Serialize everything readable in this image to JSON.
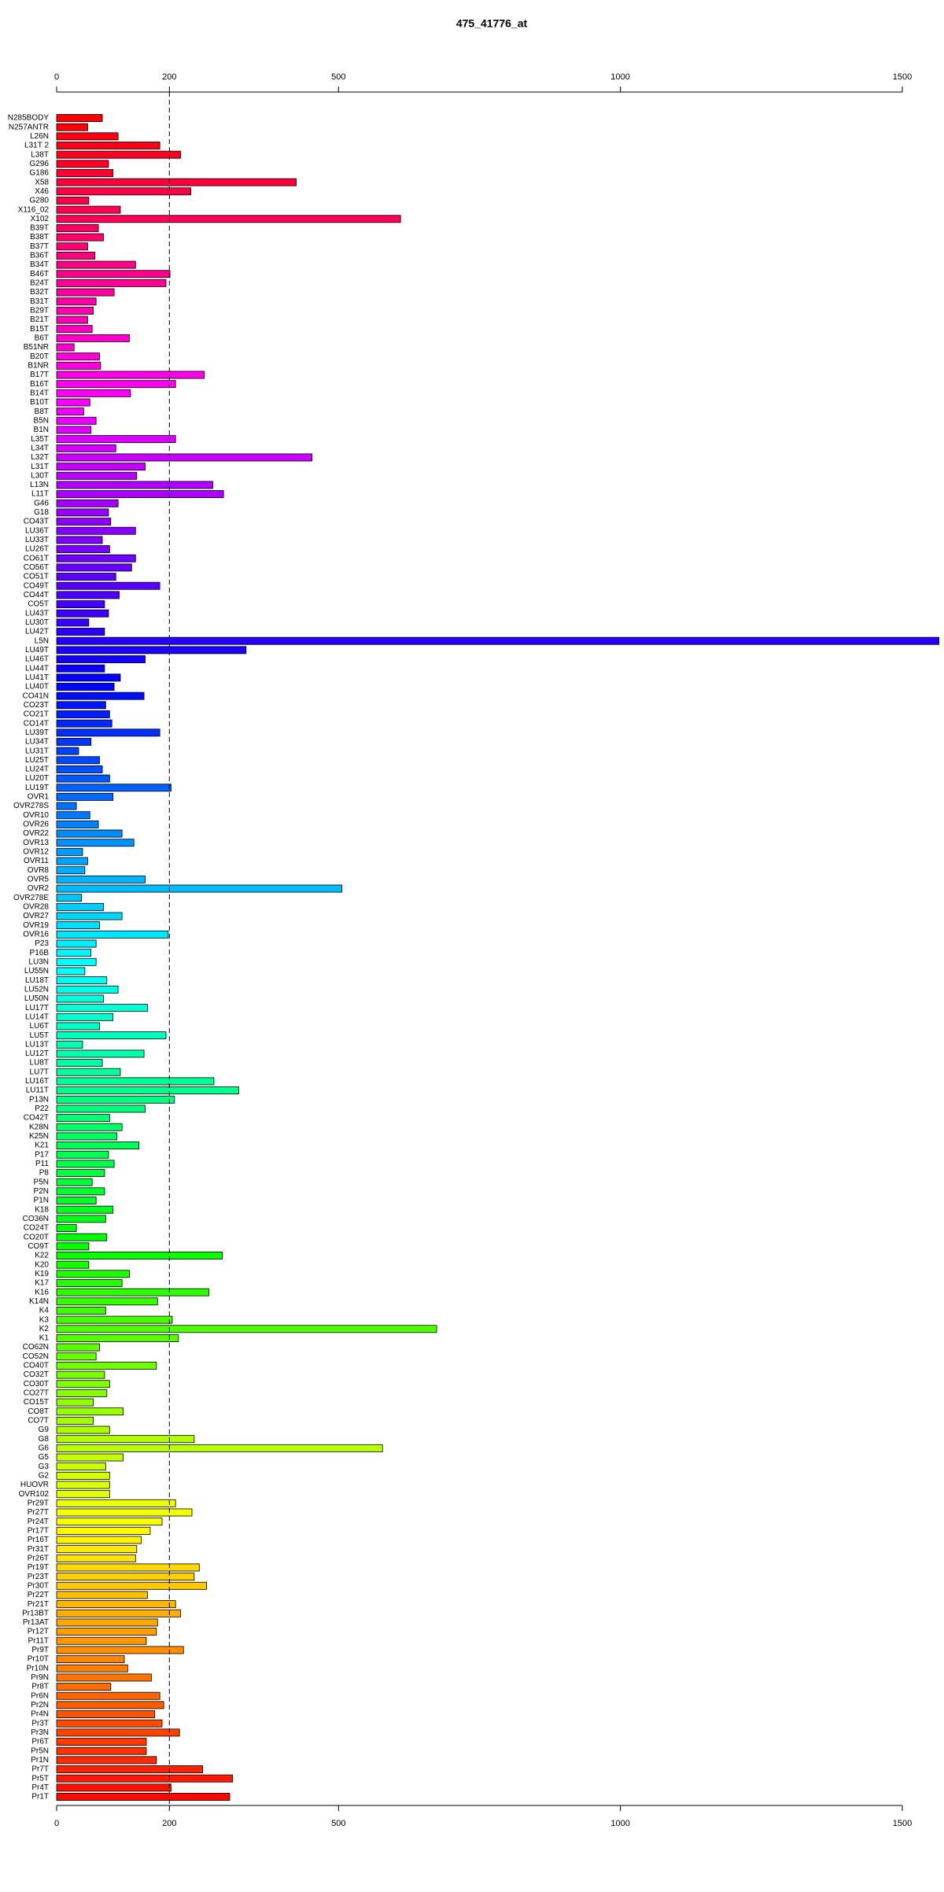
{
  "chart_data": {
    "type": "bar",
    "orientation": "horizontal",
    "title": "475_41776_at",
    "categories": [
      "N285BODY",
      "N257ANTR",
      "L26N",
      "L31T 2",
      "L38T",
      "G296",
      "G186",
      "X58",
      "X46",
      "G280",
      "X116_02",
      "X102",
      "B39T",
      "B38T",
      "B37T",
      "B36T",
      "B34T",
      "B46T",
      "B24T",
      "B32T",
      "B31T",
      "B29T",
      "B21T",
      "B15T",
      "B6T",
      "B51NR",
      "B20T",
      "B1NR",
      "B17T",
      "B16T",
      "B14T",
      "B10T",
      "B8T",
      "B5N",
      "B1N",
      "L35T",
      "L34T",
      "L32T",
      "L31T",
      "L30T",
      "L13N",
      "L11T",
      "G46",
      "G18",
      "CO43T",
      "LU36T",
      "LU33T",
      "LU26T",
      "CO61T",
      "CO56T",
      "CO51T",
      "CO49T",
      "CO44T",
      "CO5T",
      "LU43T",
      "LU30T",
      "LU42T",
      "L5N",
      "LU49T",
      "LU46T",
      "LU44T",
      "LU41T",
      "LU40T",
      "CO41N",
      "CO23T",
      "CO21T",
      "CO14T",
      "LU39T",
      "LU34T",
      "LU31T",
      "LU25T",
      "LU24T",
      "LU20T",
      "LU19T",
      "OVR1",
      "OVR278S",
      "OVR10",
      "OVR26",
      "OVR22",
      "OVR13",
      "OVR12",
      "OVR11",
      "OVR8",
      "OVR5",
      "OVR2",
      "OVR278E",
      "OVR28",
      "OVR27",
      "OVR19",
      "OVR16",
      "P23",
      "P16B",
      "LU3N",
      "LU55N",
      "LU18T",
      "LU52N",
      "LU50N",
      "LU17T",
      "LU14T",
      "LU6T",
      "LU5T",
      "LU13T",
      "LU12T",
      "LU8T",
      "LU7T",
      "LU16T",
      "LU11T",
      "P13N",
      "P22",
      "CO42T",
      "K28N",
      "K25N",
      "K21",
      "P17",
      "P11",
      "P8",
      "P5N",
      "P2N",
      "P1N",
      "K18",
      "CO36N",
      "CO24T",
      "CO20T",
      "CO9T",
      "K22",
      "K20",
      "K19",
      "K17",
      "K16",
      "K14N",
      "K4",
      "K3",
      "K2",
      "K1",
      "CO62N",
      "CO52N",
      "CO40T",
      "CO32T",
      "CO30T",
      "CO27T",
      "CO15T",
      "CO8T",
      "CO7T",
      "G9",
      "G8",
      "G6",
      "G5",
      "G3",
      "G2",
      "HUOVR",
      "OVR102",
      "Pr29T",
      "Pr27T",
      "Pr24T",
      "Pr17T",
      "Pr16T",
      "Pr31T",
      "Pr26T",
      "Pr19T",
      "Pr23T",
      "Pr30T",
      "Pr22T",
      "Pr21T",
      "Pr13BT",
      "Pr13AT",
      "Pr12T",
      "Pr11T",
      "Pr9T",
      "Pr10T",
      "Pr10N",
      "Pr9N",
      "Pr8T",
      "Pr6N",
      "Pr2N",
      "Pr4N",
      "Pr3T",
      "Pr3N",
      "Pr6T",
      "Pr5N",
      "Pr1N",
      "Pr7T",
      "Pr5T",
      "Pr4T",
      "Pr1T"
    ],
    "values": [
      81,
      55,
      109,
      183,
      220,
      92,
      100,
      425,
      238,
      57,
      113,
      610,
      74,
      83,
      55,
      68,
      140,
      201,
      194,
      102,
      70,
      65,
      55,
      63,
      129,
      31,
      76,
      78,
      262,
      211,
      131,
      59,
      48,
      70,
      61,
      211,
      105,
      453,
      157,
      142,
      277,
      296,
      109,
      92,
      96,
      140,
      81,
      94,
      140,
      133,
      105,
      183,
      111,
      85,
      92,
      57,
      85,
      1565,
      336,
      157,
      85,
      113,
      102,
      155,
      87,
      94,
      98,
      183,
      61,
      39,
      76,
      81,
      94,
      203,
      100,
      35,
      59,
      74,
      116,
      137,
      46,
      55,
      50,
      157,
      506,
      44,
      83,
      116,
      76,
      198,
      70,
      61,
      70,
      50,
      89,
      109,
      83,
      161,
      100,
      76,
      194,
      46,
      155,
      81,
      113,
      279,
      323,
      209,
      157,
      94,
      116,
      107,
      146,
      92,
      102,
      85,
      63,
      85,
      70,
      100,
      87,
      35,
      89,
      57,
      294,
      57,
      129,
      116,
      270,
      179,
      87,
      205,
      674,
      216,
      76,
      70,
      177,
      85,
      94,
      89,
      65,
      118,
      65,
      94,
      244,
      578,
      118,
      87,
      94,
      94,
      94,
      211,
      240,
      187,
      166,
      150,
      142,
      140,
      253,
      244,
      266,
      161,
      211,
      220,
      179,
      177,
      159,
      225,
      120,
      126,
      168,
      96,
      183,
      190,
      174,
      187,
      218,
      159,
      159,
      177,
      259,
      312,
      203,
      307
    ],
    "palette": "rainbow",
    "xlim": [
      0,
      1500
    ],
    "xticks": [
      0,
      200,
      500,
      1000,
      1500
    ],
    "reference_line": 200
  }
}
